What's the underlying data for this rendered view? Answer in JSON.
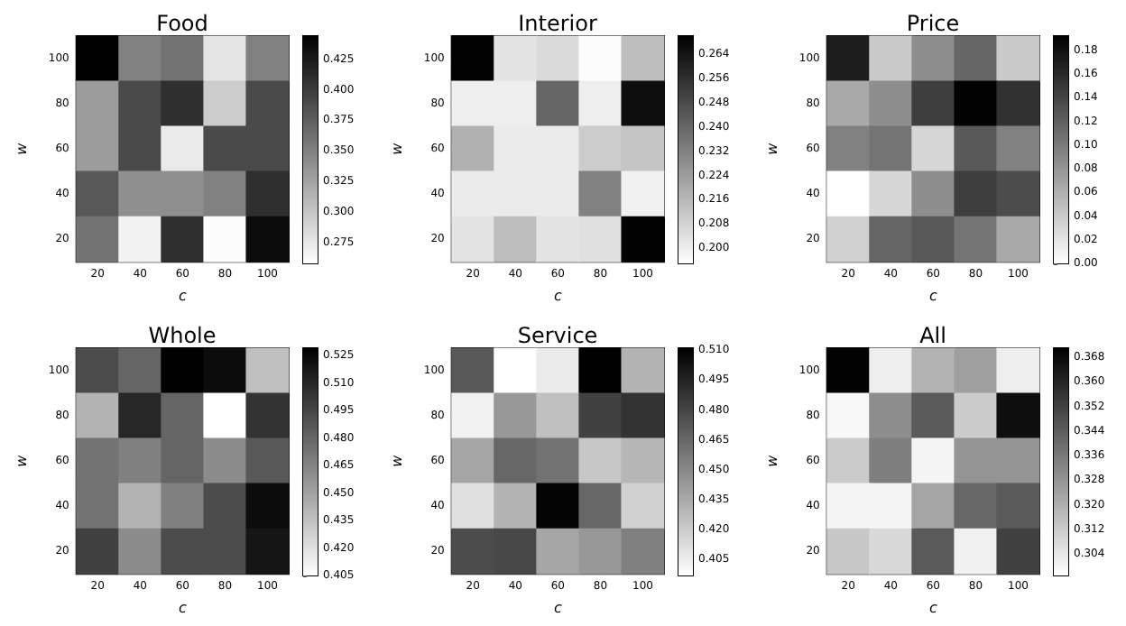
{
  "chart_data": [
    {
      "type": "heatmap",
      "title": "Food",
      "xlabel": "c",
      "ylabel": "w",
      "categories": [
        "20",
        "40",
        "60",
        "80",
        "100"
      ],
      "y_categories": [
        "100",
        "80",
        "60",
        "40",
        "20"
      ],
      "cells": [
        [
          0.444,
          0.35,
          0.36,
          0.277,
          0.35
        ],
        [
          0.33,
          0.39,
          0.41,
          0.295,
          0.39
        ],
        [
          0.33,
          0.39,
          0.273,
          0.39,
          0.39
        ],
        [
          0.38,
          0.34,
          0.34,
          0.35,
          0.41
        ],
        [
          0.36,
          0.267,
          0.41,
          0.26,
          0.435
        ]
      ],
      "clim": [
        0.258,
        0.444
      ],
      "cticks": [
        0.275,
        {
          "value": 0.3,
          "label": "0.300"
        },
        0.325,
        {
          "value": 0.35,
          "label": "0.350"
        },
        0.375,
        {
          "value": 0.4,
          "label": "0.400"
        },
        0.425
      ]
    },
    {
      "type": "heatmap",
      "title": "Interior",
      "xlabel": "c",
      "ylabel": "w",
      "categories": [
        "20",
        "40",
        "60",
        "80",
        "100"
      ],
      "y_categories": [
        "100",
        "80",
        "60",
        "40",
        "20"
      ],
      "cells": [
        [
          0.269,
          0.203,
          0.206,
          0.196,
          0.214
        ],
        [
          0.2,
          0.2,
          0.24,
          0.2,
          0.266
        ],
        [
          0.218,
          0.201,
          0.201,
          0.21,
          0.212
        ],
        [
          0.201,
          0.201,
          0.201,
          0.232,
          0.199
        ],
        [
          0.203,
          0.214,
          0.203,
          0.204,
          0.269
        ]
      ],
      "clim": [
        0.195,
        0.27
      ],
      "cticks": [
        {
          "value": 0.2,
          "label": "0.200"
        },
        0.208,
        0.216,
        0.224,
        0.232,
        {
          "value": 0.24,
          "label": "0.240"
        },
        0.248,
        0.256,
        0.264
      ]
    },
    {
      "type": "heatmap",
      "title": "Price",
      "xlabel": "c",
      "ylabel": "w",
      "categories": [
        "20",
        "40",
        "60",
        "80",
        "100"
      ],
      "y_categories": [
        "100",
        "80",
        "60",
        "40",
        "20"
      ],
      "cells": [
        [
          0.17,
          0.04,
          0.085,
          0.115,
          0.04
        ],
        [
          0.065,
          0.085,
          0.145,
          0.19,
          0.155
        ],
        [
          0.095,
          0.105,
          0.03,
          0.125,
          0.095
        ],
        [
          0.0,
          0.03,
          0.085,
          0.145,
          0.135
        ],
        [
          0.035,
          0.115,
          0.125,
          0.105,
          0.065
        ]
      ],
      "clim": [
        0,
        0.192
      ],
      "cticks": [
        {
          "value": 0,
          "label": "0.00"
        },
        0.02,
        0.04,
        0.06,
        0.08,
        {
          "value": 0.1,
          "label": "0.10"
        },
        0.12,
        0.14,
        0.16,
        0.18
      ]
    },
    {
      "type": "heatmap",
      "title": "Whole",
      "xlabel": "c",
      "ylabel": "w",
      "categories": [
        "20",
        "40",
        "60",
        "80",
        "100"
      ],
      "y_categories": [
        "100",
        "80",
        "60",
        "40",
        "20"
      ],
      "cells": [
        [
          0.492,
          0.48,
          0.529,
          0.523,
          0.436
        ],
        [
          0.442,
          0.51,
          0.48,
          0.405,
          0.504
        ],
        [
          0.473,
          0.467,
          0.48,
          0.461,
          0.486
        ],
        [
          0.473,
          0.442,
          0.467,
          0.492,
          0.523
        ],
        [
          0.498,
          0.461,
          0.492,
          0.492,
          0.519
        ]
      ],
      "clim": [
        0.405,
        0.529
      ],
      "cticks": [
        0.405,
        {
          "value": 0.42,
          "label": "0.420"
        },
        0.435,
        {
          "value": 0.45,
          "label": "0.450"
        },
        0.465,
        {
          "value": 0.48,
          "label": "0.480"
        },
        0.495,
        {
          "value": 0.51,
          "label": "0.510"
        },
        0.525
      ]
    },
    {
      "type": "heatmap",
      "title": "Service",
      "xlabel": "c",
      "ylabel": "w",
      "categories": [
        "20",
        "40",
        "60",
        "80",
        "100"
      ],
      "y_categories": [
        "100",
        "80",
        "60",
        "40",
        "20"
      ],
      "cells": [
        [
          0.471,
          0.397,
          0.406,
          0.511,
          0.431
        ],
        [
          0.403,
          0.443,
          0.425,
          0.482,
          0.488
        ],
        [
          0.437,
          0.465,
          0.46,
          0.422,
          0.429
        ],
        [
          0.411,
          0.431,
          0.509,
          0.465,
          0.418
        ],
        [
          0.477,
          0.479,
          0.437,
          0.443,
          0.454
        ]
      ],
      "clim": [
        0.397,
        0.511
      ],
      "cticks": [
        0.405,
        {
          "value": 0.42,
          "label": "0.420"
        },
        0.435,
        {
          "value": 0.45,
          "label": "0.450"
        },
        0.465,
        {
          "value": 0.48,
          "label": "0.480"
        },
        0.495,
        {
          "value": 0.51,
          "label": "0.510"
        }
      ]
    },
    {
      "type": "heatmap",
      "title": "All",
      "xlabel": "c",
      "ylabel": "w",
      "categories": [
        "20",
        "40",
        "60",
        "80",
        "100"
      ],
      "y_categories": [
        "100",
        "80",
        "60",
        "40",
        "20"
      ],
      "cells": [
        [
          0.37,
          0.302,
          0.319,
          0.325,
          0.302
        ],
        [
          0.299,
          0.33,
          0.345,
          0.312,
          0.367
        ],
        [
          0.312,
          0.334,
          0.3,
          0.328,
          0.328
        ],
        [
          0.3,
          0.3,
          0.323,
          0.341,
          0.345
        ],
        [
          0.313,
          0.308,
          0.345,
          0.301,
          0.352
        ]
      ],
      "clim": [
        0.297,
        0.371
      ],
      "cticks": [
        0.304,
        0.312,
        {
          "value": 0.32,
          "label": "0.320"
        },
        0.328,
        0.336,
        0.344,
        0.352,
        {
          "value": 0.36,
          "label": "0.360"
        },
        0.368
      ]
    }
  ]
}
